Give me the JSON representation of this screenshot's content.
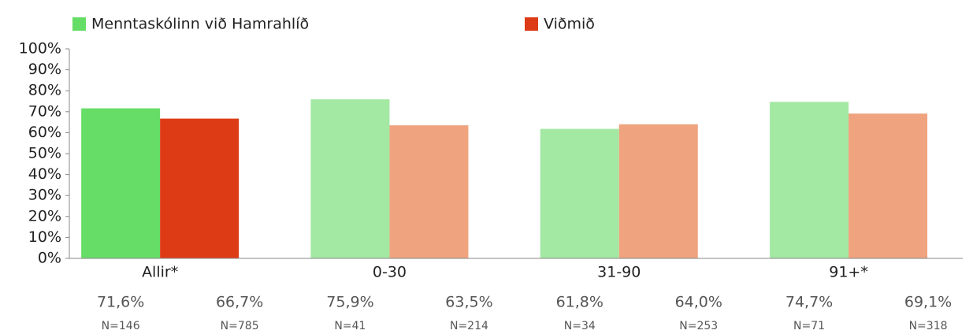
{
  "chart_data": {
    "type": "bar",
    "categories": [
      "Allir*",
      "0-30",
      "31-90",
      "91+*"
    ],
    "series": [
      {
        "name": "Menntaskólinn við Hamrahlíð",
        "color": "#66dd66",
        "colors": [
          "#66dd66",
          "#a3e8a3",
          "#a3e8a3",
          "#a3e8a3"
        ],
        "values": [
          71.6,
          75.9,
          61.8,
          74.7
        ],
        "value_labels": [
          "71,6%",
          "75,9%",
          "61,8%",
          "74,7%"
        ],
        "n_labels": [
          "N=146",
          "N=41",
          "N=34",
          "N=71"
        ]
      },
      {
        "name": "Viðmið",
        "color": "#dd3b16",
        "colors": [
          "#dd3b16",
          "#efa37f",
          "#efa37f",
          "#efa37f"
        ],
        "values": [
          66.7,
          63.5,
          64.0,
          69.1
        ],
        "value_labels": [
          "66,7%",
          "63,5%",
          "64,0%",
          "69,1%"
        ],
        "n_labels": [
          "N=785",
          "N=214",
          "N=253",
          "N=318"
        ]
      }
    ],
    "ylim": [
      0,
      100
    ],
    "yticks": [
      {
        "value": 0,
        "label": "0%"
      },
      {
        "value": 10,
        "label": "10%"
      },
      {
        "value": 20,
        "label": "20%"
      },
      {
        "value": 30,
        "label": "30%"
      },
      {
        "value": 40,
        "label": "40%"
      },
      {
        "value": 50,
        "label": "50%"
      },
      {
        "value": 60,
        "label": "60%"
      },
      {
        "value": 70,
        "label": "70%"
      },
      {
        "value": 80,
        "label": "80%"
      },
      {
        "value": 90,
        "label": "90%"
      },
      {
        "value": 100,
        "label": "100%"
      }
    ],
    "grid": false
  }
}
